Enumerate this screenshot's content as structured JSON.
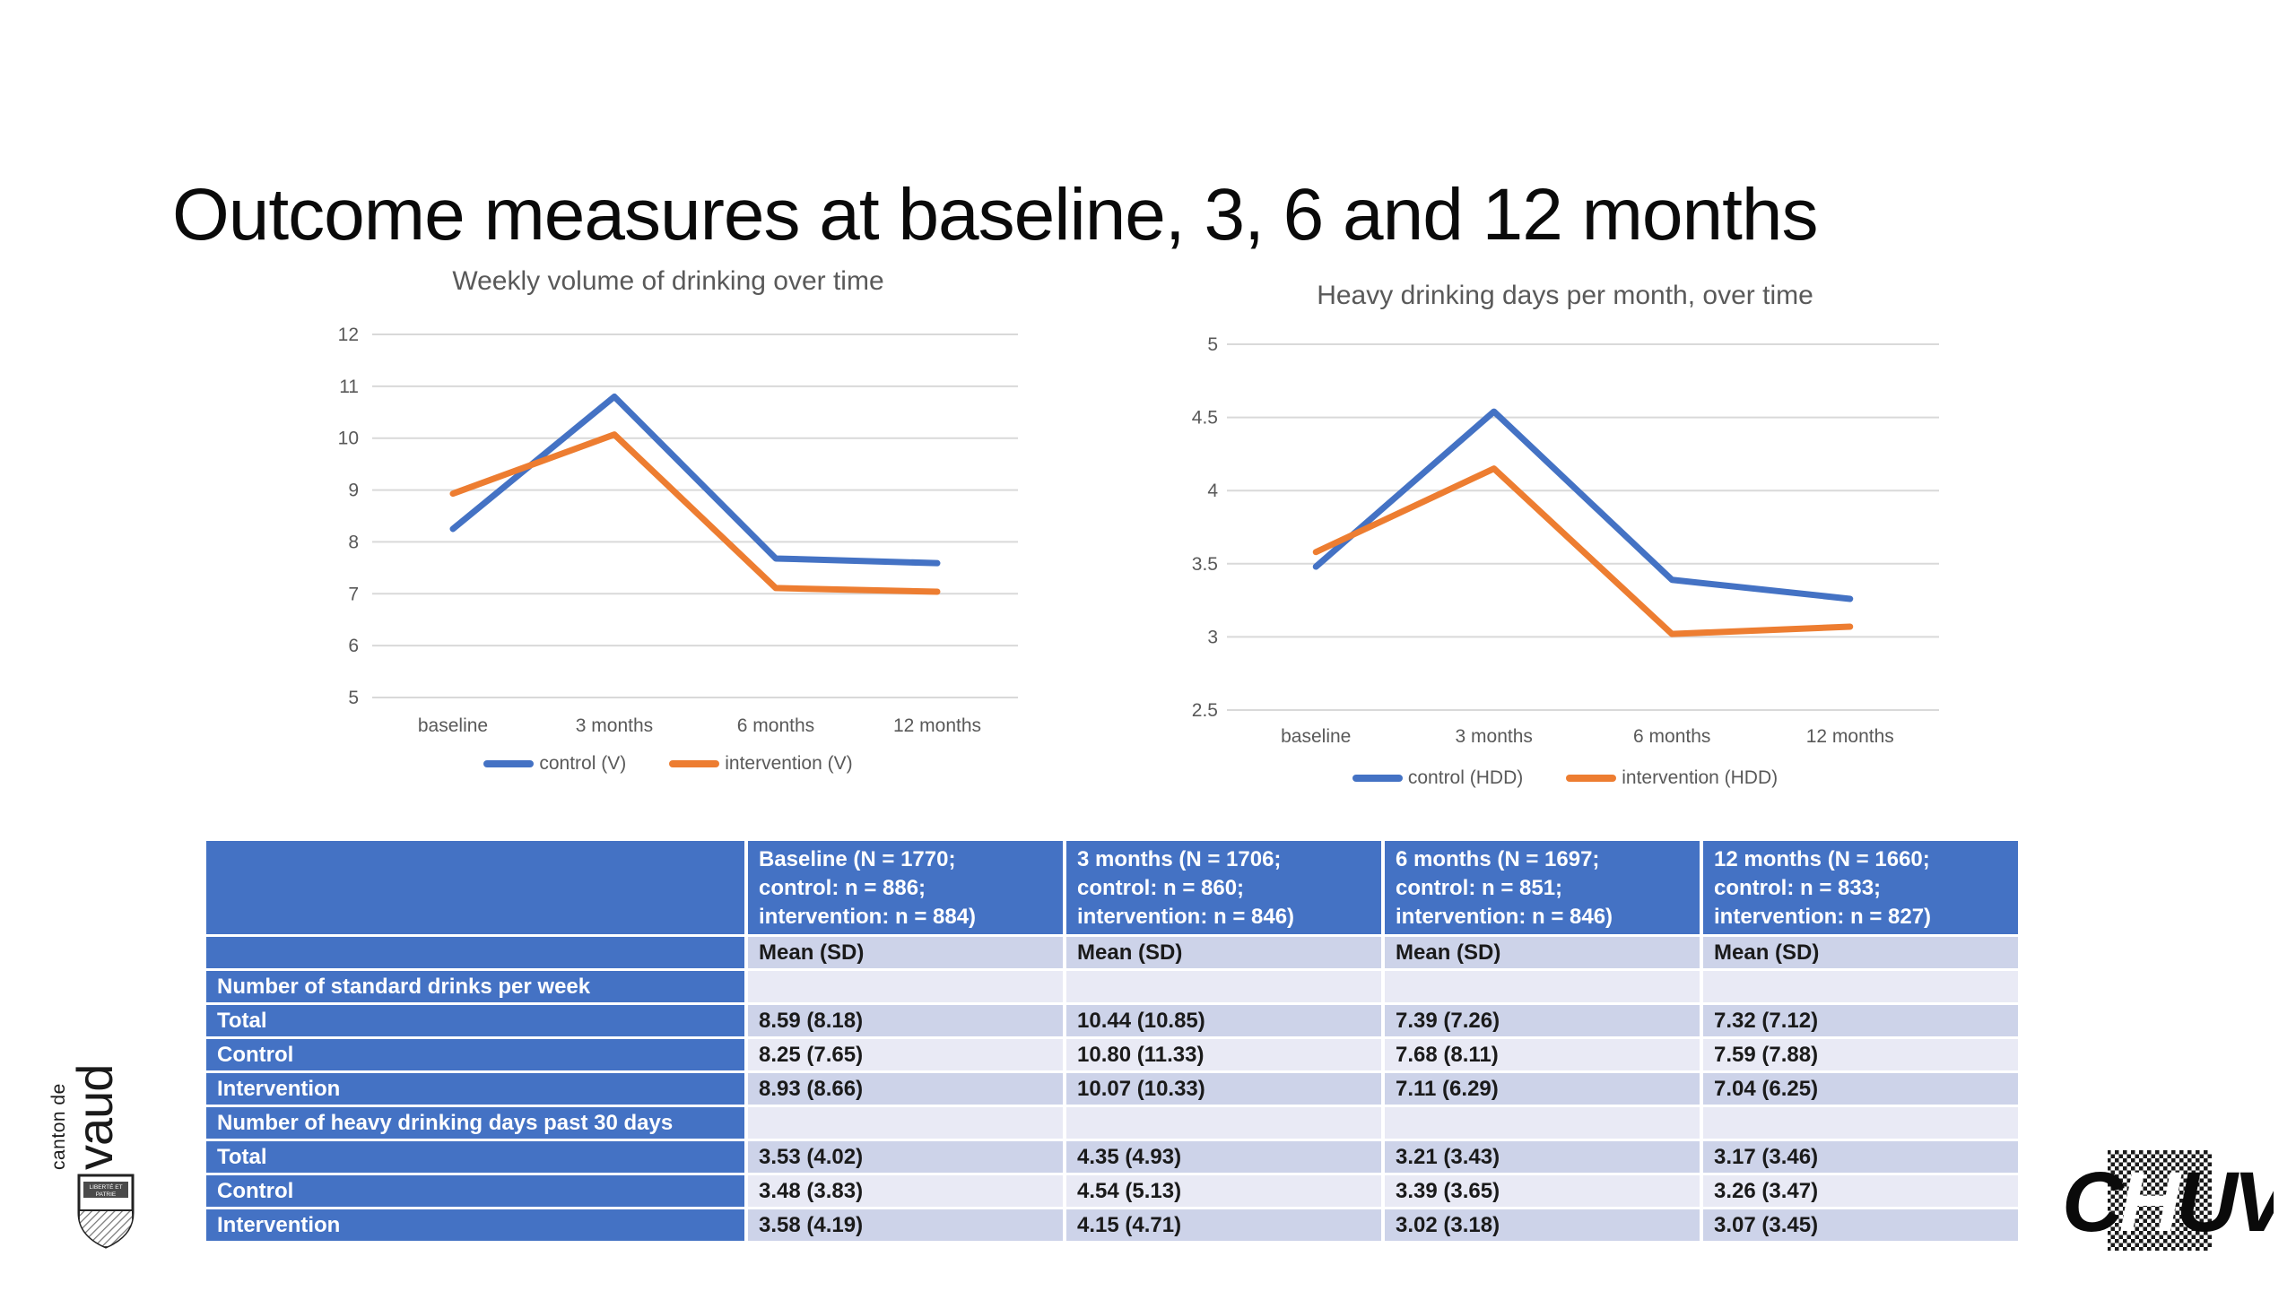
{
  "slide": {
    "title": "Outcome measures at baseline, 3, 6 and 12 months"
  },
  "colors": {
    "control_line": "#4472C4",
    "intervention_line": "#ED7D31",
    "gridline": "#D9D9D9",
    "axis_text": "#595959",
    "chart_title_text": "#595959",
    "table_header_bg": "#4472C4",
    "table_band_dark": "#CDD3E9",
    "table_band_light": "#E9EAF5",
    "logo_black": "#0a0a0a"
  },
  "chart_data": [
    {
      "type": "line",
      "title": "Weekly volume of drinking over time",
      "categories": [
        "baseline",
        "3 months",
        "6 months",
        "12 months"
      ],
      "series": [
        {
          "name": "control (V)",
          "color": "#4472C4",
          "values": [
            8.25,
            10.8,
            7.68,
            7.59
          ]
        },
        {
          "name": "intervention (V)",
          "color": "#ED7D31",
          "values": [
            8.93,
            10.07,
            7.11,
            7.04
          ]
        }
      ],
      "ylim": [
        5,
        12
      ],
      "yticks": [
        5,
        6,
        7,
        8,
        9,
        10,
        11,
        12
      ],
      "grid": true,
      "legend_position": "bottom"
    },
    {
      "type": "line",
      "title": "Heavy drinking days per month, over time",
      "categories": [
        "baseline",
        "3 months",
        "6 months",
        "12 months"
      ],
      "series": [
        {
          "name": "control (HDD)",
          "color": "#4472C4",
          "values": [
            3.48,
            4.54,
            3.39,
            3.26
          ]
        },
        {
          "name": "intervention (HDD)",
          "color": "#ED7D31",
          "values": [
            3.58,
            4.15,
            3.02,
            3.07
          ]
        }
      ],
      "ylim": [
        2.5,
        5
      ],
      "yticks": [
        2.5,
        3,
        3.5,
        4,
        4.5,
        5
      ],
      "grid": true,
      "legend_position": "bottom"
    }
  ],
  "table": {
    "header": [
      "",
      "Baseline (N = 1770;\ncontrol: n = 886;\nintervention: n = 884)",
      "3 months (N = 1706;\ncontrol: n = 860;\nintervention: n = 846)",
      "6 months (N = 1697;\ncontrol: n = 851;\nintervention: n = 846)",
      "12 months (N = 1660;\ncontrol: n = 833;\nintervention: n = 827)"
    ],
    "subheader_label": "Mean (SD)",
    "sections": [
      {
        "label": "Number of standard drinks per week",
        "rows": [
          {
            "label": "Total",
            "values": [
              "8.59 (8.18)",
              "10.44 (10.85)",
              "7.39 (7.26)",
              "7.32 (7.12)"
            ]
          },
          {
            "label": "Control",
            "values": [
              "8.25 (7.65)",
              "10.80 (11.33)",
              "7.68 (8.11)",
              "7.59 (7.88)"
            ]
          },
          {
            "label": "Intervention",
            "values": [
              "8.93 (8.66)",
              "10.07 (10.33)",
              "7.11 (6.29)",
              "7.04 (6.25)"
            ]
          }
        ]
      },
      {
        "label": "Number of heavy drinking days past 30 days",
        "rows": [
          {
            "label": "Total",
            "values": [
              "3.53 (4.02)",
              "4.35 (4.93)",
              "3.21 (3.43)",
              "3.17 (3.46)"
            ]
          },
          {
            "label": "Control",
            "values": [
              "3.48 (3.83)",
              "4.54 (5.13)",
              "3.39 (3.65)",
              "3.26 (3.47)"
            ]
          },
          {
            "label": "Intervention",
            "values": [
              "3.58 (4.19)",
              "4.15 (4.71)",
              "3.02 (3.18)",
              "3.07 (3.45)"
            ]
          }
        ]
      }
    ]
  },
  "logos": {
    "vaud_small": "canton de",
    "vaud_large": "vaud",
    "vaud_motto_line1": "LIBERTÉ ET",
    "vaud_motto_line2": "PATRIE",
    "chuv": "CHUV"
  }
}
